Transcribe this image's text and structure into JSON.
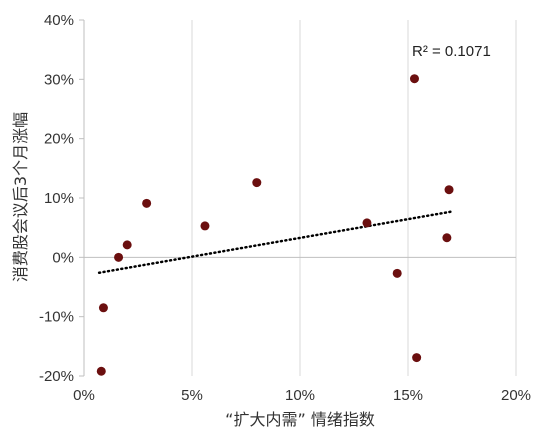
{
  "chart_data": {
    "type": "scatter",
    "title": "",
    "xlabel": "“扩大内需” 情绪指数",
    "ylabel": "消费股会议后3个月涨幅",
    "xlim": [
      0,
      0.2
    ],
    "ylim": [
      -0.2,
      0.4
    ],
    "x_ticks": [
      "0%",
      "5%",
      "10%",
      "15%",
      "20%"
    ],
    "y_ticks": [
      "40%",
      "30%",
      "20%",
      "10%",
      "0%",
      "-10%",
      "-20%"
    ],
    "grid": {
      "vertical": true,
      "horizontal": false
    },
    "points": [
      {
        "x": 0.008,
        "y": -0.192
      },
      {
        "x": 0.009,
        "y": -0.085
      },
      {
        "x": 0.016,
        "y": 0.0
      },
      {
        "x": 0.02,
        "y": 0.021
      },
      {
        "x": 0.029,
        "y": 0.091
      },
      {
        "x": 0.056,
        "y": 0.053
      },
      {
        "x": 0.08,
        "y": 0.126
      },
      {
        "x": 0.131,
        "y": 0.058
      },
      {
        "x": 0.145,
        "y": -0.027
      },
      {
        "x": 0.153,
        "y": 0.301
      },
      {
        "x": 0.154,
        "y": -0.169
      },
      {
        "x": 0.168,
        "y": 0.033
      },
      {
        "x": 0.169,
        "y": 0.114
      }
    ],
    "trendline": {
      "x": [
        0.007,
        0.17
      ],
      "y": [
        -0.026,
        0.077
      ],
      "style": "dotted"
    },
    "annotation": "R² = 0.1071"
  },
  "colors": {
    "point": "#6b0f0f",
    "trendline": "#000000",
    "gridline": "#d9d9d9",
    "axis": "#bfbfbf"
  }
}
